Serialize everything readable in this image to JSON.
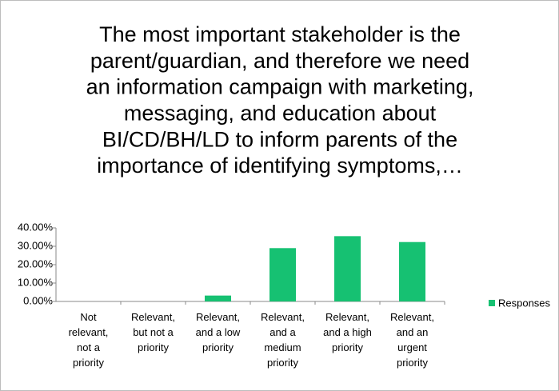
{
  "chart_data": {
    "type": "bar",
    "title_lines": [
      "The most important stakeholder is the",
      "parent/guardian, and therefore we need",
      "an information campaign with marketing,",
      "messaging, and education about",
      "BI/CD/BH/LD to inform parents of the",
      "importance of identifying symptoms,…"
    ],
    "categories": [
      "Not relevant, not a priority",
      "Relevant, but not a priority",
      "Relevant, and a low priority",
      "Relevant, and a medium priority",
      "Relevant, and a high priority",
      "Relevant, and an urgent priority"
    ],
    "series": [
      {
        "name": "Responses",
        "color": "#16c172",
        "values": [
          0,
          0,
          3.2,
          29,
          35.5,
          32.3
        ]
      }
    ],
    "ylim": [
      0,
      40
    ],
    "yticks": [
      {
        "value": 0,
        "label": "0.00%"
      },
      {
        "value": 10,
        "label": "10.00%"
      },
      {
        "value": 20,
        "label": "20.00%"
      },
      {
        "value": 30,
        "label": "30.00%"
      },
      {
        "value": 40,
        "label": "40.00%"
      }
    ],
    "grid": false,
    "legend": "right"
  }
}
